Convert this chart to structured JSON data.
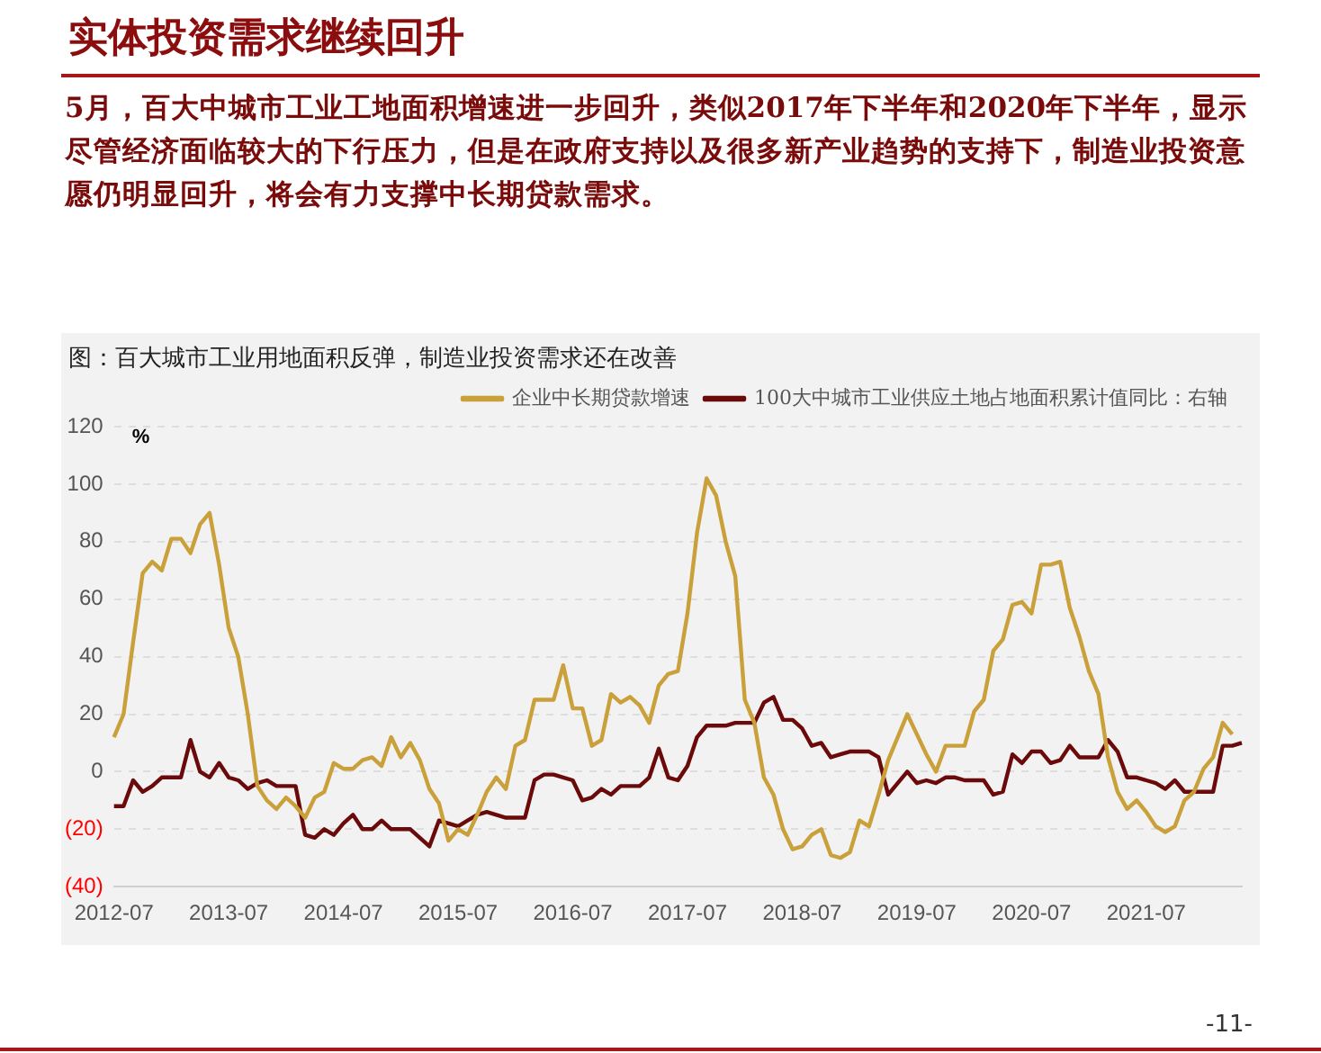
{
  "chart_data": {
    "type": "line",
    "title": "实体投资需求继续回升",
    "subtitle": "5月，百大中城市工业工地面积增速进一步回升，类似2017年下半年和2020年下半年，显示尽管经济面临较大的下行压力，但是在政府支持以及很多新产业趋势的支持下，制造业投资意愿仍明显回升，将会有力支撑中长期贷款需求。",
    "annotations": [
      "图：百大城市工业用地面积反弹，制造业投资需求还在改善",
      "-11-"
    ],
    "ylabel": "%",
    "categories": [
      "2012-07",
      null,
      null,
      null,
      null,
      null,
      null,
      null,
      null,
      null,
      null,
      null,
      "2013-07",
      null,
      null,
      null,
      null,
      null,
      null,
      null,
      null,
      null,
      null,
      null,
      "2014-07",
      null,
      null,
      null,
      null,
      null,
      null,
      null,
      null,
      null,
      null,
      null,
      "2015-07",
      null,
      null,
      null,
      null,
      null,
      null,
      null,
      null,
      null,
      null,
      null,
      "2016-07",
      null,
      null,
      null,
      null,
      null,
      null,
      null,
      null,
      null,
      null,
      null,
      "2017-07",
      null,
      null,
      null,
      null,
      null,
      null,
      null,
      null,
      null,
      null,
      null,
      "2018-07",
      null,
      null,
      null,
      null,
      null,
      null,
      null,
      null,
      null,
      null,
      null,
      "2019-07",
      null,
      null,
      null,
      null,
      null,
      null,
      null,
      null,
      null,
      null,
      null,
      "2020-07",
      null,
      null,
      null,
      null,
      null,
      null,
      null,
      null,
      null,
      null,
      null,
      "2021-07",
      null,
      null,
      null,
      null,
      null,
      null,
      null,
      null,
      null,
      null
    ],
    "series": [
      {
        "name": "企业中长期贷款增速",
        "color": "#c9a03a",
        "values": [
          12,
          20,
          45,
          69,
          73,
          70,
          81,
          81,
          76,
          86,
          90,
          72,
          50,
          40,
          20,
          -5,
          -10,
          -13,
          -9,
          -12,
          -16,
          -9,
          -7,
          3,
          1,
          1,
          4,
          5,
          2,
          12,
          5,
          10,
          4,
          -6,
          -11,
          -24,
          -20,
          -22,
          -15,
          -7,
          -2,
          -6,
          9,
          11,
          25,
          25,
          25,
          37,
          22,
          22,
          9,
          11,
          27,
          24,
          26,
          23,
          17,
          30,
          34,
          35,
          55,
          83,
          102,
          96,
          80,
          68,
          25,
          17,
          -2,
          -8,
          -20,
          -27,
          -26,
          -22,
          -20,
          -29,
          -30,
          -28,
          -17,
          -19,
          -8,
          4,
          12,
          20,
          13,
          6,
          0,
          9,
          9,
          9,
          21,
          25,
          42,
          46,
          58,
          59,
          55,
          72,
          72,
          73,
          57,
          47,
          35,
          27,
          5,
          -7,
          -13,
          -10,
          -14,
          -19,
          -21,
          -19,
          -10,
          -7,
          1,
          5,
          17,
          13,
          null
        ]
      },
      {
        "name": "100大中城市工业供应土地占地面积累计值同比：右轴",
        "color": "#6b0a0a",
        "values": [
          -12,
          -12,
          -3,
          -7,
          -5,
          -2,
          -2,
          -2,
          11,
          0,
          -2,
          3,
          -2,
          -3,
          -6,
          -4,
          -3,
          -5,
          -5,
          -5,
          -22,
          -23,
          -20,
          -22,
          -18,
          -15,
          -20,
          -20,
          -17,
          -20,
          -20,
          -20,
          -23,
          -26,
          -17,
          -18,
          -19,
          -17,
          -15,
          -14,
          -15,
          -16,
          -16,
          -16,
          -3,
          -1,
          -1,
          -2,
          -3,
          -10,
          -9,
          -6,
          -8,
          -5,
          -5,
          -5,
          -2,
          8,
          -2,
          -3,
          2,
          12,
          16,
          16,
          16,
          17,
          17,
          17,
          24,
          26,
          18,
          18,
          15,
          9,
          10,
          5,
          6,
          7,
          7,
          7,
          5,
          -8,
          -4,
          0,
          -4,
          -3,
          -4,
          -2,
          -2,
          -3,
          -3,
          -3,
          -8,
          -7,
          6,
          3,
          7,
          7,
          3,
          4,
          9,
          5,
          5,
          5,
          11,
          7,
          -2,
          -2,
          -3,
          -4,
          -6,
          -3,
          -7,
          -7,
          -7,
          -7,
          9,
          9,
          10
        ]
      }
    ],
    "ylim": [
      -40,
      120
    ],
    "yticks": [
      {
        "value": -40,
        "label": "(40)"
      },
      {
        "value": -20,
        "label": "(20)"
      },
      0,
      20,
      40,
      60,
      80,
      100,
      120
    ],
    "grid": "y",
    "legend": "top right",
    "marker": "none",
    "line_style": "solid"
  }
}
